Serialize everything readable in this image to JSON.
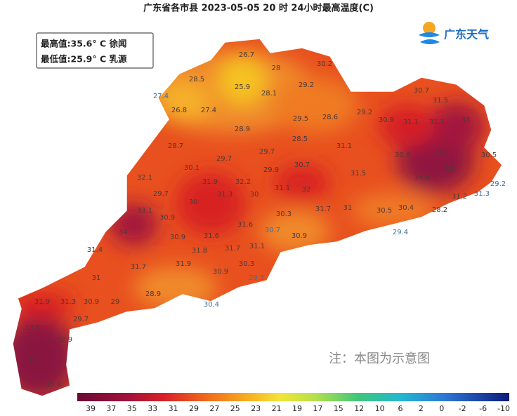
{
  "header": {
    "title": "广东省各市县 2023-05-05 20 时 24小时最高温度(C)"
  },
  "info_box": {
    "max": "最高值:35.6° C 徐闻",
    "min": "最低值:25.9° C 乳源"
  },
  "logo": "广东天气",
  "note": "注：本图为示意图",
  "watermark": "@广东天气",
  "map_labels": [
    "26.7",
    "28",
    "30.2",
    "28.5",
    "25.9",
    "28.1",
    "29.2",
    "30.7",
    "31.5",
    "27.4",
    "26.8",
    "27.4",
    "29.5",
    "28.6",
    "29.2",
    "30.9",
    "31.1",
    "31.1",
    "33",
    "28.9",
    "28.5",
    "28.7",
    "30.1",
    "29.7",
    "29.7",
    "31.1",
    "33.6",
    "30.5",
    "30.7",
    "29.9",
    "31.5",
    "30.8",
    "33",
    "32.1",
    "31.9",
    "32.2",
    "31.3",
    "30",
    "31.1",
    "32",
    "34.6",
    "29.2",
    "29.7",
    "30",
    "33.1",
    "31.7",
    "31",
    "30.5",
    "30.4",
    "28.2",
    "31.2",
    "31.3",
    "30.9",
    "30.3",
    "34",
    "29.4",
    "30.9",
    "31.6",
    "31.6",
    "30.7",
    "30.9",
    "31.4",
    "31.8",
    "31.7",
    "31.1",
    "31.7",
    "31.9",
    "30.9",
    "30.3",
    "31",
    "29.3",
    "28.9",
    "31.9",
    "31.3",
    "30.9",
    "29",
    "30.4",
    "29.7",
    "33.5",
    "32.9",
    "35",
    "35.6"
  ],
  "legend": {
    "ticks": [
      39,
      37,
      35,
      33,
      31,
      29,
      27,
      25,
      23,
      21,
      19,
      17,
      15,
      12,
      10,
      6,
      2,
      0,
      -2,
      -6,
      -10
    ]
  }
}
